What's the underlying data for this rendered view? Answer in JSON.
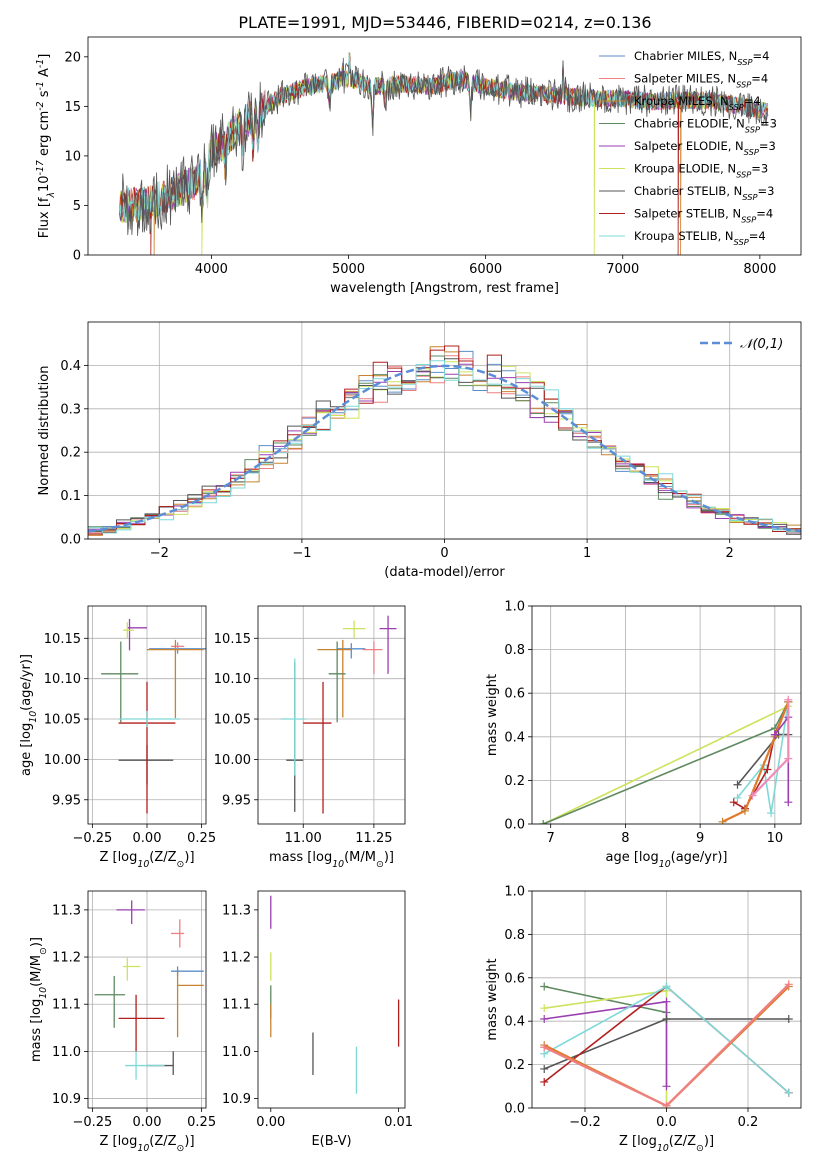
{
  "colors": {
    "Chabrier MILES": "#5b8ec9",
    "Salpeter MILES": "#ef7f80",
    "Kroupa MILES": "#c98330",
    "Chabrier ELODIE": "#5f8a60",
    "Salpeter ELODIE": "#9b3fb0",
    "Kroupa ELODIE": "#cde35d",
    "Chabrier STELIB": "#555555",
    "Salpeter STELIB": "#b21f1f",
    "Kroupa STELIB": "#7fd8d8",
    "orange": "#e07b2e",
    "pink": "#f08ab7",
    "grey": "#7f7f7f",
    "normal": "#5b8ed6"
  },
  "chart_data": [
    {
      "id": "spectrum",
      "type": "line",
      "title": "PLATE=1991, MJD=53446, FIBERID=0214, z=0.136",
      "xlabel": "wavelength [Angstrom, rest frame]",
      "ylabel": "Flux [f$_\\lambda$10$^{-17}$ erg cm$^{-2}$ s$^{-1}$ A$^{-1}$]",
      "xlim": [
        3100,
        8300
      ],
      "ylim": [
        0,
        22
      ],
      "xticks": [
        "4000",
        "5000",
        "6000",
        "7000",
        "8000"
      ],
      "yticks": [
        "0",
        "5",
        "10",
        "15",
        "20"
      ],
      "legend_placement": "top-right",
      "legend": [
        "Chabrier MILES, N$_{SSP}$=4",
        "Salpeter MILES, N$_{SSP}$=4",
        "Kroupa MILES, N$_{SSP}$=4",
        "Chabrier ELODIE, N$_{SSP}$=3",
        "Salpeter ELODIE, N$_{SSP}$=3",
        "Kroupa ELODIE, N$_{SSP}$=3",
        "Chabrier STELIB, N$_{SSP}$=3",
        "Salpeter STELIB, N$_{SSP}$=4",
        "Kroupa STELIB, N$_{SSP}$=4"
      ],
      "continuum": [
        [
          3330,
          5.0
        ],
        [
          3500,
          5.1
        ],
        [
          3700,
          6.0
        ],
        [
          3900,
          7.5
        ],
        [
          4000,
          10.5
        ],
        [
          4100,
          11.5
        ],
        [
          4200,
          13.0
        ],
        [
          4350,
          14.5
        ],
        [
          4500,
          16.0
        ],
        [
          4700,
          17.0
        ],
        [
          5000,
          17.8
        ],
        [
          5200,
          17.0
        ],
        [
          5400,
          17.3
        ],
        [
          5600,
          17.0
        ],
        [
          5800,
          17.8
        ],
        [
          6000,
          17.0
        ],
        [
          6200,
          16.5
        ],
        [
          6400,
          16.3
        ],
        [
          6600,
          16.0
        ],
        [
          6800,
          15.8
        ],
        [
          7000,
          15.8
        ],
        [
          7200,
          15.5
        ],
        [
          7400,
          15.6
        ],
        [
          7600,
          15.6
        ],
        [
          7800,
          15.2
        ],
        [
          8050,
          14.5
        ]
      ],
      "absorption": [
        [
          3934,
          4.5
        ],
        [
          3969,
          4.0
        ],
        [
          4102,
          2.5
        ],
        [
          4227,
          2.0
        ],
        [
          4304,
          3.0
        ],
        [
          4340,
          2.5
        ],
        [
          4861,
          2.0
        ],
        [
          5175,
          4.0
        ],
        [
          5270,
          1.5
        ],
        [
          5890,
          3.0
        ]
      ],
      "spikes": [
        [
          4959,
          2.5
        ],
        [
          5007,
          5.0
        ],
        [
          6563,
          3.0
        ],
        [
          6584,
          1.5
        ]
      ],
      "drops": [
        [
          3560,
          "Salpeter STELIB"
        ],
        [
          3580,
          "Kroupa MILES"
        ],
        [
          3930,
          "Kroupa ELODIE"
        ],
        [
          6790,
          "Kroupa ELODIE"
        ],
        [
          7405,
          "Salpeter STELIB"
        ],
        [
          7420,
          "Kroupa MILES"
        ]
      ]
    },
    {
      "id": "residuals",
      "type": "area",
      "xlabel": "(data-model)/error",
      "ylabel": "Normed distribution",
      "xlim": [
        -2.5,
        2.5
      ],
      "ylim": [
        0,
        0.5
      ],
      "xticks": [
        "−2",
        "−1",
        "0",
        "1",
        "2"
      ],
      "yticks": [
        "0.0",
        "0.1",
        "0.2",
        "0.3",
        "0.4"
      ],
      "grid": true,
      "legend_placement": "top-right",
      "curve_label": "$\\mathcal{N}(0,1)$",
      "bin_width": 0.1
    },
    {
      "id": "age-vs-Z",
      "type": "scatter",
      "xlabel": "Z [log$_{10}$(Z/Z$_\\odot$)]",
      "ylabel": "age  [log$_{10}$(age/yr)]",
      "xlim": [
        -0.27,
        0.27
      ],
      "ylim": [
        9.92,
        10.19
      ],
      "xticks": [
        "−0.25",
        "0.00",
        "0.25"
      ],
      "yticks": [
        "9.95",
        "10.00",
        "10.05",
        "10.10",
        "10.15"
      ],
      "grid": true,
      "points": [
        {
          "model": "Chabrier MILES",
          "x": 0.14,
          "xerr": [
            0.13,
            0.14
          ],
          "y": 10.137,
          "yerr": [
            0.006,
            0.006
          ]
        },
        {
          "model": "Salpeter MILES",
          "x": 0.14,
          "xerr": [
            0.03,
            0.03
          ],
          "y": 10.14,
          "yerr": [
            0.005,
            0.005
          ]
        },
        {
          "model": "Kroupa MILES",
          "x": 0.13,
          "xerr": [
            0.13,
            0.13
          ],
          "y": 10.136,
          "yerr": [
            0.085,
            0.012
          ]
        },
        {
          "model": "Chabrier ELODIE",
          "x": -0.12,
          "xerr": [
            0.09,
            0.08
          ],
          "y": 10.106,
          "yerr": [
            0.06,
            0.04
          ]
        },
        {
          "model": "Salpeter ELODIE",
          "x": -0.08,
          "xerr": [
            0.01,
            0.08
          ],
          "y": 10.163,
          "yerr": [
            0.028,
            0.011
          ]
        },
        {
          "model": "Kroupa ELODIE",
          "x": -0.09,
          "xerr": [
            0.02,
            0.03
          ],
          "y": 10.16,
          "yerr": [
            0.01,
            0.01
          ]
        },
        {
          "model": "Chabrier STELIB",
          "x": 0.0,
          "xerr": [
            0.13,
            0.12
          ],
          "y": 9.999,
          "yerr": [
            0.03,
            0.019
          ]
        },
        {
          "model": "Salpeter STELIB",
          "x": 0.0,
          "xerr": [
            0.13,
            0.13
          ],
          "y": 10.045,
          "yerr": [
            0.112,
            0.051
          ]
        },
        {
          "model": "Kroupa STELIB",
          "x": 0.0,
          "xerr": [
            0.13,
            0.15
          ],
          "y": 10.05,
          "yerr": [
            0.01,
            0.01
          ]
        }
      ]
    },
    {
      "id": "age-vs-mass",
      "type": "scatter",
      "xlabel": "mass [log$_{10}$(M/M$_\\odot$)]",
      "xlim": [
        10.84,
        11.36
      ],
      "ylim": [
        9.92,
        10.19
      ],
      "xticks": [
        "11.00",
        "11.25"
      ],
      "yticks": [
        "9.95",
        "10.00",
        "10.05",
        "10.10",
        "10.15"
      ],
      "grid": true,
      "points": [
        {
          "model": "Chabrier MILES",
          "x": 11.17,
          "xerr": [
            0.05,
            0.05
          ],
          "y": 10.137,
          "yerr": [
            0.012,
            0.007
          ]
        },
        {
          "model": "Salpeter MILES",
          "x": 11.25,
          "xerr": [
            0.04,
            0.03
          ],
          "y": 10.136,
          "yerr": [
            0.03,
            0.01
          ]
        },
        {
          "model": "Kroupa MILES",
          "x": 11.14,
          "xerr": [
            0.09,
            0.03
          ],
          "y": 10.136,
          "yerr": [
            0.084,
            0.012
          ]
        },
        {
          "model": "Chabrier ELODIE",
          "x": 11.12,
          "xerr": [
            0.03,
            0.03
          ],
          "y": 10.106,
          "yerr": [
            0.06,
            0.04
          ]
        },
        {
          "model": "Salpeter ELODIE",
          "x": 11.3,
          "xerr": [
            0.03,
            0.03
          ],
          "y": 10.162,
          "yerr": [
            0.056,
            0.016
          ]
        },
        {
          "model": "Kroupa ELODIE",
          "x": 11.18,
          "xerr": [
            0.04,
            0.04
          ],
          "y": 10.162,
          "yerr": [
            0.012,
            0.01
          ]
        },
        {
          "model": "Chabrier STELIB",
          "x": 10.97,
          "xerr": [
            0.03,
            0.03
          ],
          "y": 9.999,
          "yerr": [
            0.064,
            0.121
          ]
        },
        {
          "model": "Salpeter STELIB",
          "x": 11.07,
          "xerr": [
            0.07,
            0.03
          ],
          "y": 10.045,
          "yerr": [
            0.112,
            0.051
          ]
        },
        {
          "model": "Kroupa STELIB",
          "x": 10.97,
          "xerr": [
            0.05,
            0.04
          ],
          "y": 10.05,
          "yerr": [
            0.07,
            0.075
          ]
        }
      ]
    },
    {
      "id": "weight-vs-age",
      "type": "line",
      "xlabel": "age  [log$_{10}$(age/yr)]",
      "ylabel": "mass weight",
      "xlim": [
        6.75,
        10.35
      ],
      "ylim": [
        0,
        1.0
      ],
      "xticks": [
        "7",
        "8",
        "9",
        "10"
      ],
      "yticks": [
        "0.0",
        "0.2",
        "0.4",
        "0.6",
        "0.8",
        "1.0"
      ],
      "grid": true,
      "series": [
        {
          "model": "Kroupa ELODIE",
          "x": [
            6.9,
            10.18
          ],
          "y": [
            0.0,
            0.54
          ]
        },
        {
          "model": "Chabrier ELODIE",
          "x": [
            6.9,
            10.0,
            10.18
          ],
          "y": [
            0.0,
            0.44,
            0.56
          ]
        },
        {
          "model": "Chabrier STELIB",
          "x": [
            9.5,
            10.05,
            10.18
          ],
          "y": [
            0.18,
            0.41,
            0.41
          ]
        },
        {
          "model": "Kroupa STELIB",
          "x": [
            9.5,
            9.85,
            9.95,
            10.18
          ],
          "y": [
            0.12,
            0.27,
            0.05,
            0.56
          ]
        },
        {
          "model": "Salpeter STELIB",
          "x": [
            9.45,
            9.6,
            9.9,
            10.0,
            10.18
          ],
          "y": [
            0.1,
            0.07,
            0.25,
            0.41,
            0.56
          ]
        },
        {
          "model": "Kroupa MILES",
          "x": [
            9.3,
            9.6,
            10.0,
            10.18
          ],
          "y": [
            0.01,
            0.06,
            0.4,
            0.56
          ]
        },
        {
          "model": "Salpeter ELODIE",
          "x": [
            10.0,
            10.18,
            10.18
          ],
          "y": [
            0.41,
            0.49,
            0.1
          ]
        },
        {
          "model": "Salpeter MILES",
          "x": [
            9.7,
            10.18,
            10.18
          ],
          "y": [
            0.13,
            0.3,
            0.57
          ]
        }
      ]
    },
    {
      "id": "mass-vs-Z",
      "type": "scatter",
      "xlabel": "Z [log$_{10}$(Z/Z$_\\odot$)]",
      "ylabel": "mass [log$_{10}$(M/M$_\\odot$)]",
      "xlim": [
        -0.27,
        0.27
      ],
      "ylim": [
        10.88,
        11.34
      ],
      "xticks": [
        "−0.25",
        "0.00",
        "0.25"
      ],
      "yticks": [
        "10.9",
        "11.0",
        "11.1",
        "11.2",
        "11.3"
      ],
      "grid": true,
      "points": [
        {
          "model": "Chabrier MILES",
          "x": 0.14,
          "xerr": [
            0.03,
            0.12
          ],
          "y": 11.17,
          "yerr": [
            0.01,
            0.01
          ]
        },
        {
          "model": "Salpeter MILES",
          "x": 0.15,
          "xerr": [
            0.04,
            0.02
          ],
          "y": 11.25,
          "yerr": [
            0.03,
            0.03
          ]
        },
        {
          "model": "Kroupa MILES",
          "x": 0.14,
          "xerr": [
            0.0,
            0.12
          ],
          "y": 11.14,
          "yerr": [
            0.11,
            0.03
          ]
        },
        {
          "model": "Chabrier ELODIE",
          "x": -0.15,
          "xerr": [
            0.09,
            0.05
          ],
          "y": 11.12,
          "yerr": [
            0.07,
            0.04
          ]
        },
        {
          "model": "Salpeter ELODIE",
          "x": -0.07,
          "xerr": [
            0.07,
            0.06
          ],
          "y": 11.3,
          "yerr": [
            0.03,
            0.02
          ]
        },
        {
          "model": "Kroupa ELODIE",
          "x": -0.09,
          "xerr": [
            0.02,
            0.06
          ],
          "y": 11.18,
          "yerr": [
            0.03,
            0.02
          ]
        },
        {
          "model": "Chabrier STELIB",
          "x": 0.12,
          "xerr": [
            0.12,
            0.0
          ],
          "y": 10.97,
          "yerr": [
            0.02,
            0.03
          ]
        },
        {
          "model": "Salpeter STELIB",
          "x": -0.05,
          "xerr": [
            0.08,
            0.13
          ],
          "y": 11.07,
          "yerr": [
            0.07,
            0.05
          ]
        },
        {
          "model": "Kroupa STELIB",
          "x": -0.05,
          "xerr": [
            0.05,
            0.13
          ],
          "y": 10.97,
          "yerr": [
            0.03,
            0.03
          ]
        }
      ]
    },
    {
      "id": "mass-vs-EBV",
      "type": "scatter",
      "xlabel": "E(B-V)",
      "xlim": [
        -0.001,
        0.0105
      ],
      "ylim": [
        10.88,
        11.34
      ],
      "xticks": [
        "0.00",
        "0.01"
      ],
      "yticks": [
        "10.9",
        "11.0",
        "11.1",
        "11.2",
        "11.3"
      ],
      "points": [
        {
          "model": "Salpeter ELODIE",
          "x": 0.0,
          "y": 11.29,
          "yerr": [
            0.03,
            0.04
          ]
        },
        {
          "model": "Kroupa ELODIE",
          "x": 0.0,
          "y": 11.18,
          "yerr": [
            0.03,
            0.03
          ]
        },
        {
          "model": "Chabrier ELODIE",
          "x": 0.0,
          "y": 11.11,
          "yerr": [
            0.04,
            0.03
          ]
        },
        {
          "model": "Kroupa MILES",
          "x": 0.0,
          "y": 11.06,
          "yerr": [
            0.03,
            0.04
          ]
        },
        {
          "model": "Chabrier STELIB",
          "x": 0.0033,
          "y": 10.99,
          "yerr": [
            0.04,
            0.05
          ]
        },
        {
          "model": "Kroupa STELIB",
          "x": 0.0067,
          "y": 10.96,
          "yerr": [
            0.05,
            0.05
          ]
        },
        {
          "model": "Salpeter STELIB",
          "x": 0.01,
          "y": 11.06,
          "yerr": [
            0.05,
            0.05
          ]
        }
      ]
    },
    {
      "id": "weight-vs-Z",
      "type": "line",
      "xlabel": "Z [log$_{10}$(Z/Z$_\\odot$)]",
      "ylabel": "mass weight",
      "xlim": [
        -0.33,
        0.33
      ],
      "ylim": [
        0,
        1.0
      ],
      "xticks": [
        "−0.2",
        "0.0",
        "0.2"
      ],
      "yticks": [
        "0.0",
        "0.2",
        "0.4",
        "0.6",
        "0.8",
        "1.0"
      ],
      "grid": true,
      "series": [
        {
          "model": "Chabrier ELODIE",
          "x": [
            -0.3,
            0.0
          ],
          "y": [
            0.56,
            0.44
          ]
        },
        {
          "model": "Kroupa ELODIE",
          "x": [
            -0.3,
            0.0,
            0.0
          ],
          "y": [
            0.46,
            0.54,
            0.0
          ]
        },
        {
          "model": "Salpeter ELODIE",
          "x": [
            -0.3,
            0.0,
            0.0
          ],
          "y": [
            0.41,
            0.49,
            0.1
          ]
        },
        {
          "model": "Chabrier STELIB",
          "x": [
            -0.3,
            0.0,
            0.3
          ],
          "y": [
            0.18,
            0.41,
            0.41
          ]
        },
        {
          "model": "Salpeter STELIB",
          "x": [
            -0.3,
            0.0,
            0.3
          ],
          "y": [
            0.12,
            0.56,
            0.07
          ]
        },
        {
          "model": "Kroupa STELIB",
          "x": [
            -0.3,
            0.0,
            0.3
          ],
          "y": [
            0.25,
            0.56,
            0.07
          ]
        },
        {
          "model": "Kroupa MILES",
          "x": [
            -0.3,
            0.0,
            0.3
          ],
          "y": [
            0.29,
            0.01,
            0.56
          ]
        },
        {
          "model": "Salpeter MILES",
          "x": [
            -0.3,
            0.0,
            0.3
          ],
          "y": [
            0.28,
            0.01,
            0.57
          ]
        }
      ]
    }
  ]
}
